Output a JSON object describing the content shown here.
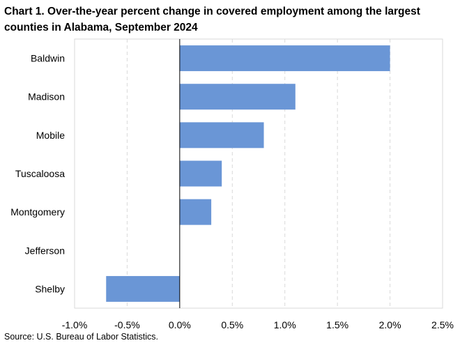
{
  "title": "Chart 1. Over-the-year percent change in covered employment among the largest counties in Alabama, September 2024",
  "source": "Source: U.S. Bureau of Labor Statistics.",
  "chart_data": {
    "type": "bar",
    "orientation": "horizontal",
    "title": "Chart 1. Over-the-year percent change in covered employment among the largest counties in Alabama, September 2024",
    "categories": [
      "Baldwin",
      "Madison",
      "Mobile",
      "Tuscaloosa",
      "Montgomery",
      "Jefferson",
      "Shelby"
    ],
    "values": [
      2.0,
      1.1,
      0.8,
      0.4,
      0.3,
      0.0,
      -0.7
    ],
    "xlim": [
      -1.0,
      2.5
    ],
    "xticks": [
      -1.0,
      -0.5,
      0.0,
      0.5,
      1.0,
      1.5,
      2.0,
      2.5
    ],
    "xtick_labels": [
      "-1.0%",
      "-0.5%",
      "0.0%",
      "0.5%",
      "1.0%",
      "1.5%",
      "2.0%",
      "2.5%"
    ],
    "grid": "vertical dashed",
    "bar_color": "#6a96d6",
    "xlabel": "",
    "ylabel": ""
  }
}
